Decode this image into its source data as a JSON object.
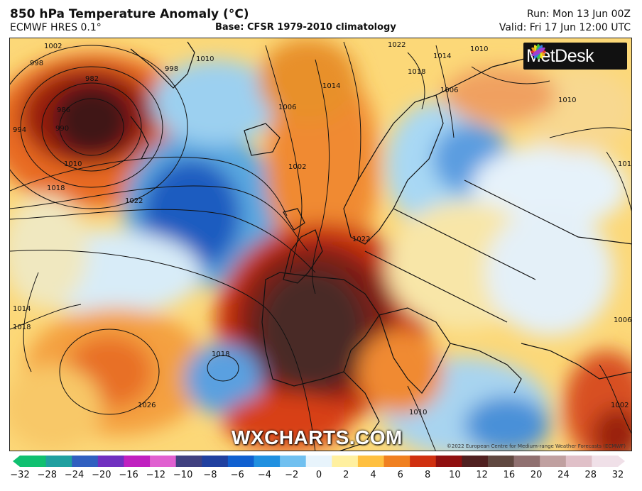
{
  "header": {
    "title": "850 hPa Temperature Anomaly (°C)",
    "model": "ECMWF HRES 0.1°",
    "base": "Base: CFSR 1979-2010 climatology",
    "run": "Run: Mon 13 Jun 00Z",
    "valid": "Valid: Fri 17 Jun 12:00 UTC"
  },
  "logo": {
    "text": "MetDesk",
    "icon": "metdesk-burst-icon"
  },
  "watermark": "WXCHARTS.COM",
  "copyright": "©2022 European Centre for Medium-range Weather Forecasts (ECMWF)",
  "isobar_labels": [
    "1002",
    "998",
    "982",
    "986",
    "990",
    "994",
    "1010",
    "1018",
    "1022",
    "998",
    "1010",
    "1006",
    "1014",
    "1002",
    "1018",
    "1022",
    "1014",
    "1010",
    "1006",
    "1010",
    "1014",
    "1018",
    "1026",
    "1018",
    "1022",
    "1010",
    "1002",
    "1006",
    "1014"
  ],
  "colorbar": {
    "ticks": [
      "−32",
      "−28",
      "−24",
      "−20",
      "−16",
      "−12",
      "−10",
      "−8",
      "−6",
      "−4",
      "−2",
      "0",
      "2",
      "4",
      "6",
      "8",
      "10",
      "12",
      "16",
      "20",
      "24",
      "28",
      "32"
    ],
    "colors": [
      "#10c070",
      "#20a0a0",
      "#3060c0",
      "#7030c0",
      "#c020c0",
      "#e060d0",
      "#404080",
      "#2040a0",
      "#1060d0",
      "#2090e0",
      "#70c0f0",
      "#e8f4fc",
      "#fff0a0",
      "#ffc040",
      "#f08020",
      "#d03010",
      "#901010",
      "#502020",
      "#604840",
      "#907070",
      "#c0a0a0",
      "#e0c0c8",
      "#f0e0e8"
    ]
  }
}
